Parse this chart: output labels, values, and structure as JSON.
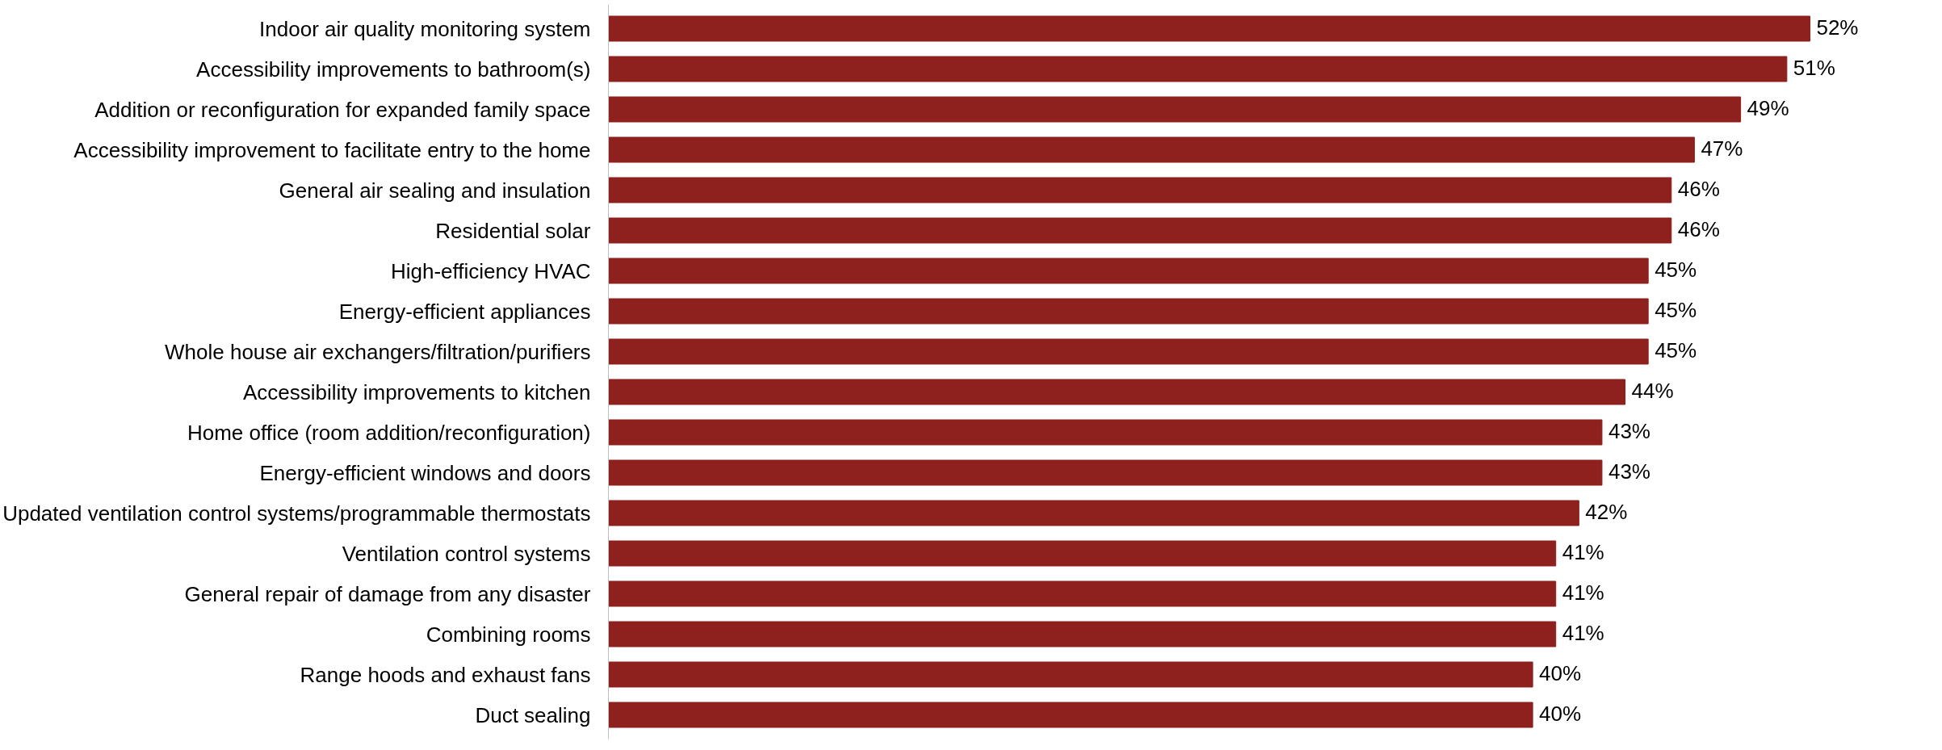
{
  "chart_data": {
    "type": "bar",
    "orientation": "horizontal",
    "categories": [
      "Indoor air quality monitoring system",
      "Accessibility improvements to bathroom(s)",
      "Addition or reconfiguration for expanded family space",
      "Accessibility improvement to facilitate entry to the home",
      "General air sealing and insulation",
      "Residential solar",
      "High-efficiency HVAC",
      "Energy-efficient appliances",
      "Whole house air exchangers/filtration/purifiers",
      "Accessibility improvements to kitchen",
      "Home office (room addition/reconfiguration)",
      "Energy-efficient windows and doors",
      "Updated ventilation control systems/programmable thermostats",
      "Ventilation control systems",
      "General repair of damage from any disaster",
      "Combining rooms",
      "Range hoods and exhaust fans",
      "Duct sealing"
    ],
    "values": [
      52,
      51,
      49,
      47,
      46,
      46,
      45,
      45,
      45,
      44,
      43,
      43,
      42,
      41,
      41,
      41,
      40,
      40
    ],
    "value_labels": [
      "52%",
      "51%",
      "49%",
      "47%",
      "46%",
      "46%",
      "45%",
      "45%",
      "45%",
      "44%",
      "43%",
      "43%",
      "42%",
      "41%",
      "41%",
      "41%",
      "40%",
      "40%"
    ],
    "color": "#8e201d",
    "grid": false
  }
}
